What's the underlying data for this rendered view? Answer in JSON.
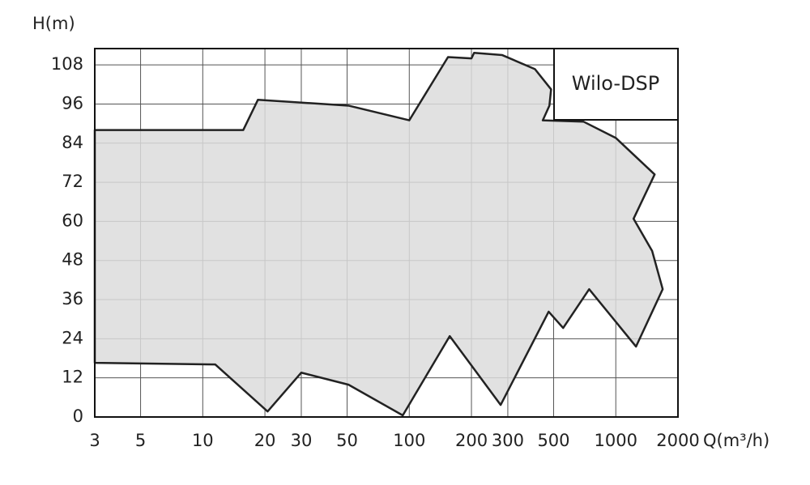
{
  "chart_data": {
    "type": "area",
    "y_label": "H(m)",
    "x_label": "Q(m³/h)",
    "annotation": "Wilo-DSP",
    "x": [
      3,
      15.7,
      18.5,
      50.8,
      100,
      154,
      200,
      206,
      282,
      406,
      486,
      477,
      443,
      697,
      1000,
      1542,
      1219,
      1500,
      1687,
      1253,
      743,
      556,
      473,
      277,
      157,
      93,
      50.8,
      30,
      20.6,
      11.5,
      3
    ],
    "values": [
      88,
      88,
      97.3,
      95.5,
      91,
      110.4,
      110,
      111.7,
      111,
      106.7,
      100.5,
      95.5,
      91,
      90.6,
      85.6,
      74.4,
      60.8,
      50.9,
      39.2,
      21.6,
      39.2,
      27.3,
      32.3,
      3.7,
      24.8,
      0.5,
      9.9,
      13.6,
      1.7,
      16.1,
      16.6
    ],
    "color": "#dcdcdc",
    "log_x": true,
    "xlim": [
      3,
      2000
    ],
    "xticks": [
      3,
      5,
      10,
      20,
      30,
      50,
      100,
      200,
      300,
      500,
      1000,
      2000
    ],
    "ylim": [
      0,
      113
    ],
    "yticks": [
      0,
      12,
      24,
      36,
      48,
      60,
      72,
      84,
      96,
      108
    ],
    "grid": true
  }
}
